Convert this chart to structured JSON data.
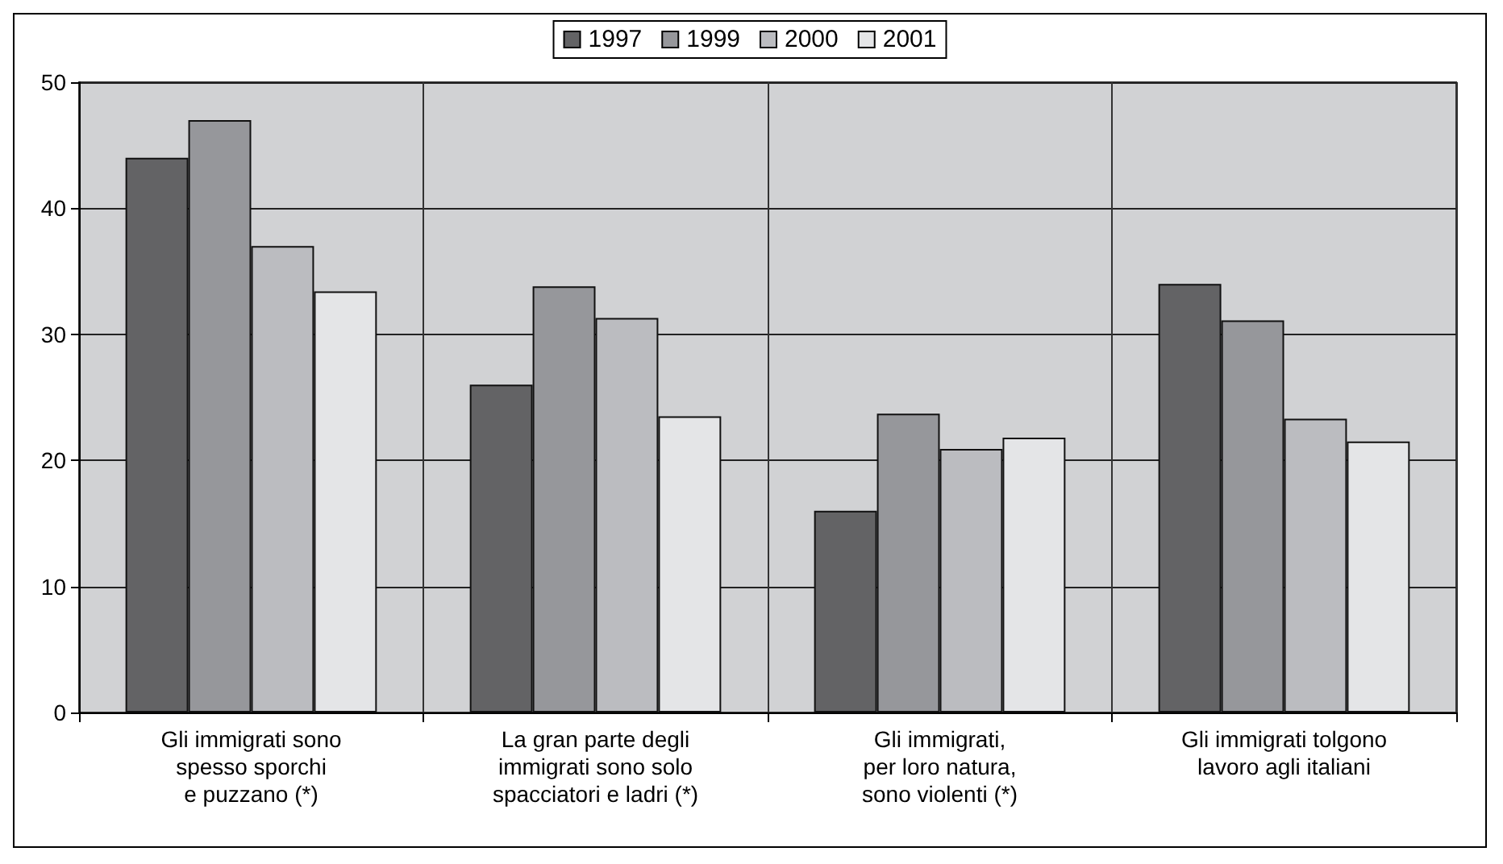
{
  "chart_data": {
    "type": "bar",
    "categories": [
      "Gli immigrati sono\nspesso sporchi\ne puzzano (*)",
      "La gran parte degli\nimmigrati sono solo\nspacciatori e ladri (*)",
      "Gli immigrati,\nper loro natura,\nsono violenti (*)",
      "Gli immigrati tolgono\nlavoro agli italiani"
    ],
    "series": [
      {
        "name": "1997",
        "color": "#636365",
        "values": [
          44.0,
          26.0,
          16.0,
          34.0
        ]
      },
      {
        "name": "1999",
        "color": "#96979b",
        "values": [
          47.0,
          33.8,
          23.7,
          31.1
        ]
      },
      {
        "name": "2000",
        "color": "#bbbcc0",
        "values": [
          37.0,
          31.3,
          20.9,
          23.3
        ]
      },
      {
        "name": "2001",
        "color": "#e4e5e7",
        "values": [
          33.4,
          23.5,
          21.8,
          21.5
        ]
      }
    ],
    "ylim": [
      0,
      50
    ],
    "yticks": [
      0,
      10,
      20,
      30,
      40,
      50
    ],
    "grid": true,
    "legend": "top"
  }
}
